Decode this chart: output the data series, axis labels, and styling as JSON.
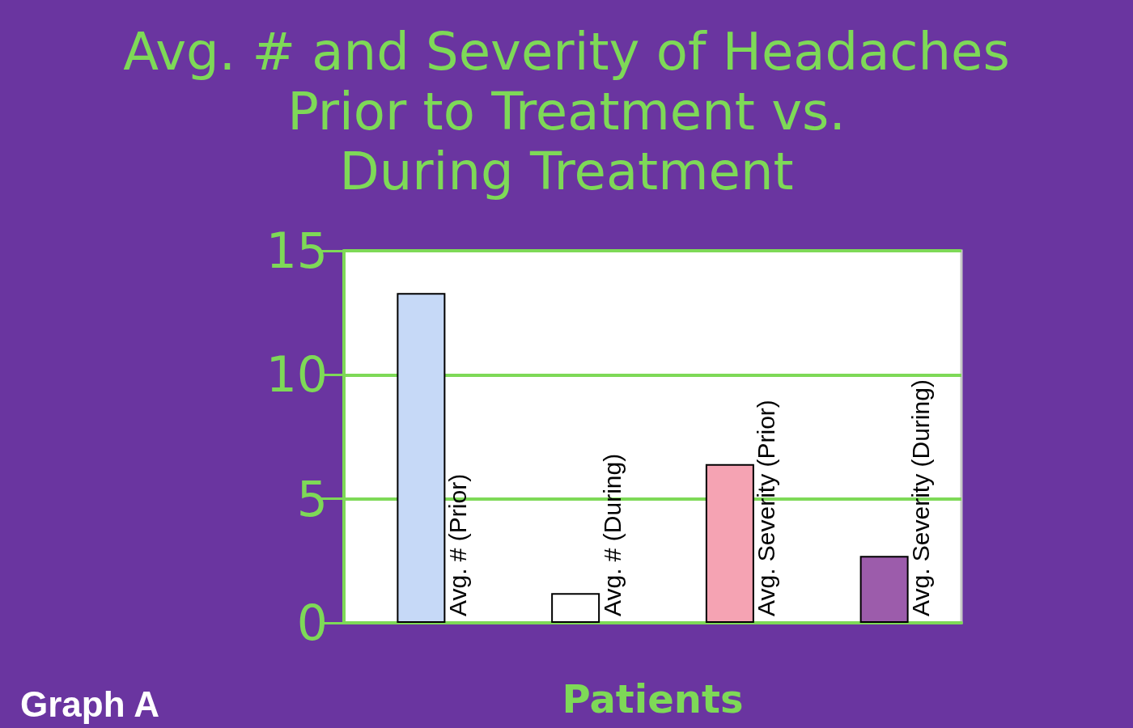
{
  "chart_data": {
    "type": "bar",
    "title": "Avg. # and Severity of Headaches\nPrior to Treatment vs.\nDuring Treatment",
    "xlabel": "Patients",
    "categories": [
      "Avg. # (Prior)",
      "Avg. # (During)",
      "Avg. Severity (Prior)",
      "Avg. Severity (During)"
    ],
    "values": [
      13.3,
      1.2,
      6.4,
      2.7
    ],
    "colors": [
      "#c6d9f7",
      "#ffffff",
      "#f5a3b3",
      "#9c5cab"
    ],
    "ylim": [
      0,
      15
    ],
    "yticks": [
      0,
      5,
      10,
      15
    ],
    "grid": "y",
    "annotations": [
      "Graph A"
    ]
  }
}
